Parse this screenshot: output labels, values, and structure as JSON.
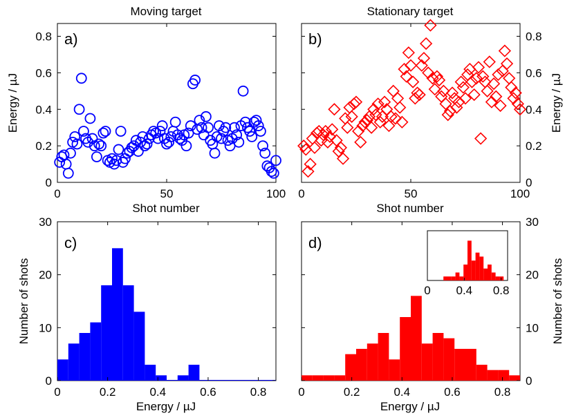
{
  "chart_data": [
    {
      "type": "scatter",
      "panel_label": "a)",
      "title": "Moving target",
      "xlabel": "Shot number",
      "ylabel": "Energy / µJ",
      "xlim": [
        0,
        100
      ],
      "ylim": [
        0,
        0.87
      ],
      "xticks": [
        "0",
        "50",
        "100"
      ],
      "yticks": [
        "0",
        "0.2",
        "0.4",
        "0.6",
        "0.8"
      ],
      "marker": "circle",
      "color": "#0000ff",
      "x": [
        1,
        2,
        3,
        4,
        5,
        6,
        7,
        8,
        9,
        10,
        11,
        12,
        13,
        14,
        15,
        16,
        17,
        18,
        19,
        20,
        21,
        22,
        23,
        24,
        25,
        26,
        27,
        28,
        29,
        30,
        31,
        32,
        33,
        34,
        35,
        36,
        37,
        38,
        39,
        40,
        41,
        42,
        43,
        44,
        45,
        46,
        47,
        48,
        49,
        50,
        51,
        52,
        53,
        54,
        55,
        56,
        57,
        58,
        59,
        60,
        61,
        62,
        63,
        64,
        65,
        66,
        67,
        68,
        69,
        70,
        71,
        72,
        73,
        74,
        75,
        76,
        77,
        78,
        79,
        80,
        81,
        82,
        83,
        84,
        85,
        86,
        87,
        88,
        89,
        90,
        91,
        92,
        93,
        94,
        95,
        96,
        97,
        98,
        99,
        100
      ],
      "y": [
        0.11,
        0.14,
        0.15,
        0.1,
        0.05,
        0.16,
        0.22,
        0.25,
        0.21,
        0.4,
        0.57,
        0.28,
        0.24,
        0.22,
        0.35,
        0.24,
        0.2,
        0.14,
        0.21,
        0.2,
        0.27,
        0.28,
        0.12,
        0.11,
        0.13,
        0.1,
        0.12,
        0.18,
        0.28,
        0.11,
        0.13,
        0.16,
        0.17,
        0.19,
        0.2,
        0.23,
        0.17,
        0.22,
        0.25,
        0.2,
        0.21,
        0.24,
        0.26,
        0.28,
        0.27,
        0.24,
        0.28,
        0.31,
        0.24,
        0.21,
        0.22,
        0.25,
        0.28,
        0.33,
        0.26,
        0.24,
        0.23,
        0.26,
        0.2,
        0.27,
        0.31,
        0.54,
        0.56,
        0.29,
        0.34,
        0.3,
        0.26,
        0.36,
        0.3,
        0.23,
        0.21,
        0.16,
        0.25,
        0.31,
        0.24,
        0.28,
        0.3,
        0.23,
        0.2,
        0.24,
        0.3,
        0.26,
        0.22,
        0.31,
        0.5,
        0.33,
        0.3,
        0.28,
        0.25,
        0.33,
        0.34,
        0.31,
        0.28,
        0.2,
        0.16,
        0.09,
        0.08,
        0.06,
        0.05,
        0.12
      ]
    },
    {
      "type": "scatter",
      "panel_label": "b)",
      "title": "Stationary target",
      "xlabel": "Shot number",
      "ylabel": "Energy / µJ",
      "xlim": [
        0,
        100
      ],
      "ylim": [
        0,
        0.87
      ],
      "xticks": [
        "0",
        "50",
        "100"
      ],
      "yticks": [
        "0",
        "0.2",
        "0.4",
        "0.6",
        "0.8"
      ],
      "marker": "diamond",
      "color": "#ff0000",
      "x": [
        1,
        2,
        3,
        4,
        5,
        6,
        7,
        8,
        9,
        10,
        11,
        12,
        13,
        14,
        15,
        16,
        17,
        18,
        19,
        20,
        21,
        22,
        23,
        24,
        25,
        26,
        27,
        28,
        29,
        30,
        31,
        32,
        33,
        34,
        35,
        36,
        37,
        38,
        39,
        40,
        41,
        42,
        43,
        44,
        45,
        46,
        47,
        48,
        49,
        50,
        51,
        52,
        53,
        54,
        55,
        56,
        57,
        58,
        59,
        60,
        61,
        62,
        63,
        64,
        65,
        66,
        67,
        68,
        69,
        70,
        71,
        72,
        73,
        74,
        75,
        76,
        77,
        78,
        79,
        80,
        81,
        82,
        83,
        84,
        85,
        86,
        87,
        88,
        89,
        90,
        91,
        92,
        93,
        94,
        95,
        96,
        97,
        98,
        99,
        100
      ],
      "y": [
        0.2,
        0.18,
        0.06,
        0.1,
        0.24,
        0.19,
        0.27,
        0.28,
        0.23,
        0.26,
        0.28,
        0.22,
        0.25,
        0.29,
        0.4,
        0.23,
        0.17,
        0.19,
        0.13,
        0.35,
        0.3,
        0.41,
        0.36,
        0.43,
        0.44,
        0.28,
        0.22,
        0.31,
        0.33,
        0.34,
        0.36,
        0.3,
        0.4,
        0.37,
        0.43,
        0.33,
        0.36,
        0.44,
        0.4,
        0.31,
        0.36,
        0.5,
        0.35,
        0.46,
        0.41,
        0.33,
        0.62,
        0.58,
        0.71,
        0.64,
        0.55,
        0.46,
        0.49,
        0.48,
        0.64,
        0.68,
        0.76,
        0.6,
        0.86,
        0.57,
        0.51,
        0.58,
        0.56,
        0.47,
        0.5,
        0.43,
        0.37,
        0.39,
        0.49,
        0.46,
        0.41,
        0.44,
        0.55,
        0.52,
        0.46,
        0.59,
        0.62,
        0.55,
        0.48,
        0.57,
        0.63,
        0.24,
        0.58,
        0.55,
        0.5,
        0.66,
        0.44,
        0.54,
        0.47,
        0.59,
        0.42,
        0.61,
        0.72,
        0.65,
        0.57,
        0.52,
        0.46,
        0.49,
        0.43,
        0.4
      ]
    },
    {
      "type": "bar",
      "panel_label": "c)",
      "xlabel": "Energy / µJ",
      "ylabel": "Number of shots",
      "xlim": [
        0,
        0.87
      ],
      "ylim": [
        0,
        30
      ],
      "xticks": [
        "0",
        "0.2",
        "0.4",
        "0.6",
        "0.8"
      ],
      "yticks": [
        "0",
        "10",
        "20",
        "30"
      ],
      "color": "#0000ff",
      "bin_width": 0.0435,
      "bin_left_edges": [
        0.0,
        0.0435,
        0.087,
        0.1305,
        0.174,
        0.2175,
        0.261,
        0.3045,
        0.348,
        0.3915,
        0.435,
        0.4785,
        0.522,
        0.5655,
        0.609,
        0.6525,
        0.696,
        0.7395,
        0.783,
        0.8265
      ],
      "values": [
        4,
        7,
        9,
        11,
        18,
        25,
        18,
        13,
        3,
        1,
        0,
        1,
        3,
        0,
        0,
        0,
        0,
        0,
        0,
        0
      ]
    },
    {
      "type": "bar",
      "panel_label": "d)",
      "xlabel": "Energy / µJ",
      "ylabel": "Number of shots",
      "xlim": [
        0,
        0.87
      ],
      "ylim": [
        0,
        30
      ],
      "xticks": [
        "0",
        "0.2",
        "0.4",
        "0.6",
        "0.8"
      ],
      "yticks": [
        "0",
        "10",
        "20",
        "30"
      ],
      "color": "#ff0000",
      "bin_width": 0.0435,
      "bin_left_edges": [
        0.0,
        0.0435,
        0.087,
        0.1305,
        0.174,
        0.2175,
        0.261,
        0.3045,
        0.348,
        0.3915,
        0.435,
        0.4785,
        0.522,
        0.5655,
        0.609,
        0.6525,
        0.696,
        0.7395,
        0.783,
        0.8265
      ],
      "values": [
        1,
        1,
        1,
        1,
        5,
        6,
        7,
        9,
        4,
        12,
        16,
        7,
        9,
        8,
        6,
        6,
        3,
        2,
        2,
        1
      ],
      "inset": {
        "xlim": [
          0,
          0.87
        ],
        "xticks": [
          "0",
          "0.4",
          "0.8"
        ],
        "values": [
          0,
          0,
          0,
          0,
          1,
          1,
          1,
          2,
          1,
          4,
          10,
          5,
          7,
          6,
          3,
          4,
          2,
          1,
          1,
          0
        ]
      }
    }
  ]
}
